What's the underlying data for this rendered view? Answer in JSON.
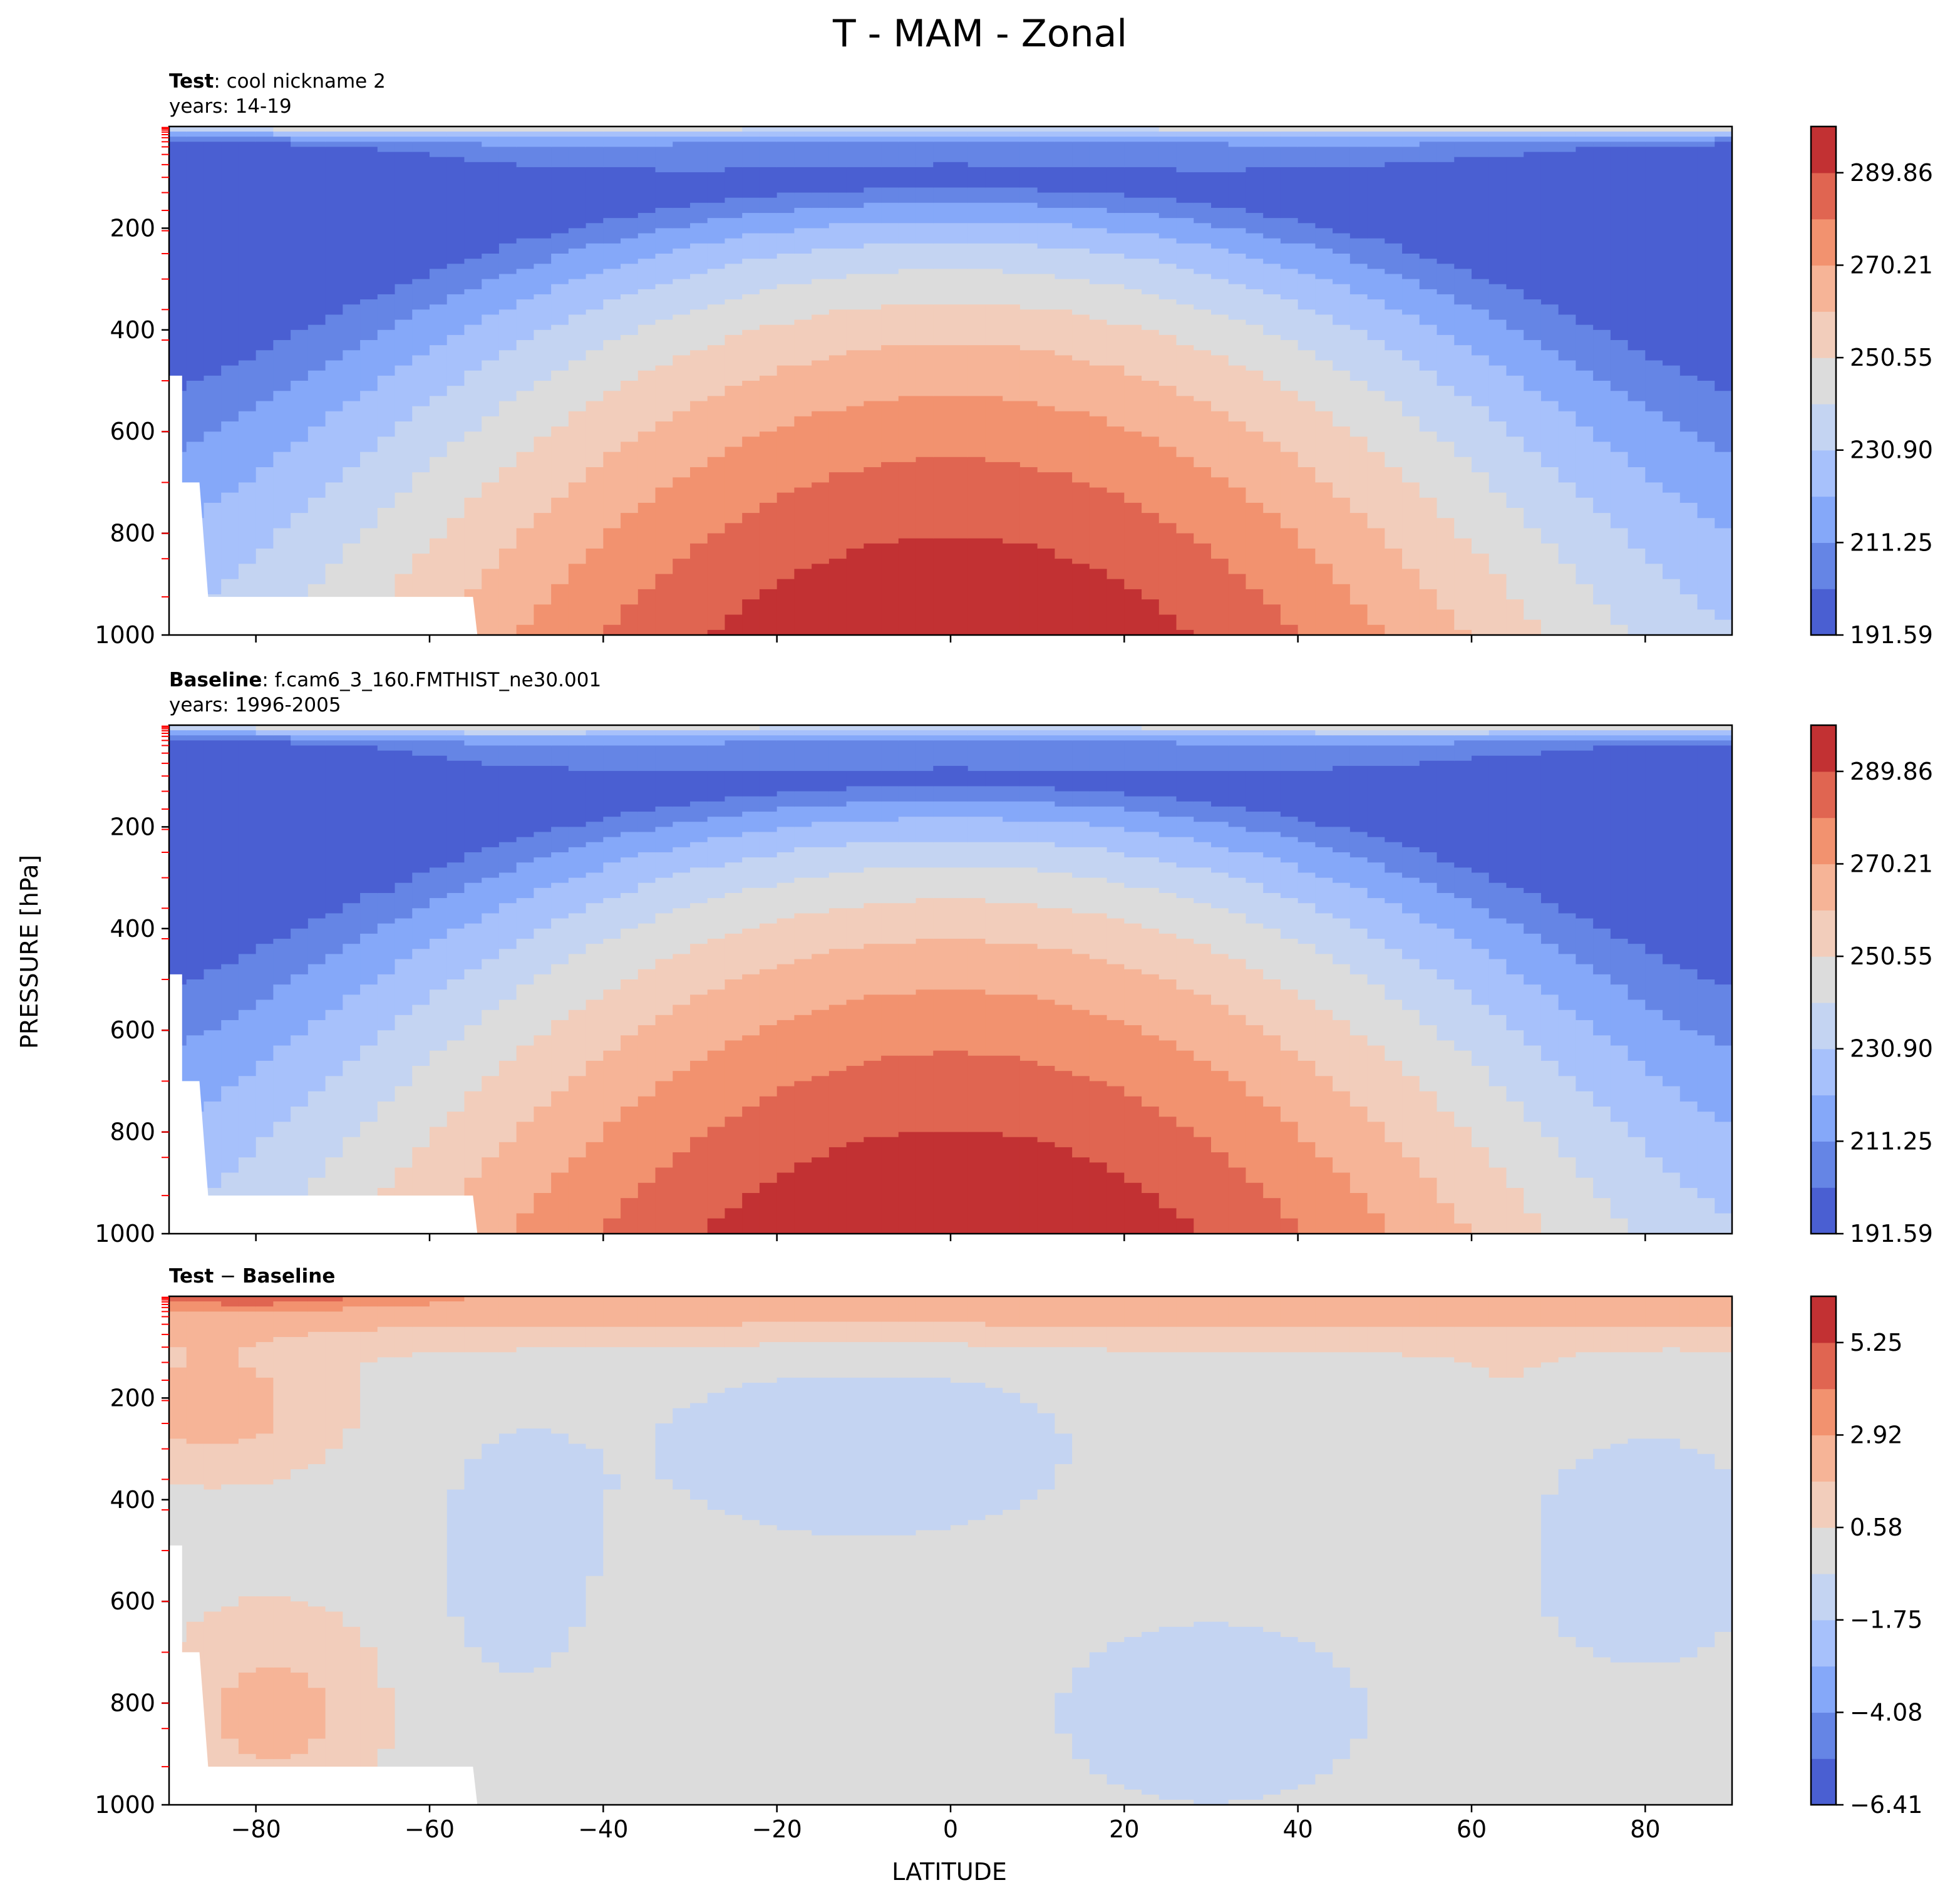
{
  "figure": {
    "title": "T - MAM - Zonal",
    "xlabel": "LATITUDE",
    "ylabel": "PRESSURE [hPa]"
  },
  "chart_data": [
    {
      "type": "contourf",
      "title_bold": "Test",
      "title_rest": ": cool nickname 2",
      "subtitle": "years: 14-19",
      "xlim": [
        -90,
        90
      ],
      "ylim": [
        1000,
        0
      ],
      "x_ticks": [
        "−80",
        "−60",
        "−40",
        "−20",
        "0",
        "20",
        "40",
        "60",
        "80"
      ],
      "y_ticks": [
        "200",
        "400",
        "600",
        "800",
        "1000"
      ],
      "colorbar_ticks": [
        "191.59",
        "211.25",
        "230.90",
        "250.55",
        "270.21",
        "289.86"
      ],
      "colorbar_range": [
        191.59,
        299.69
      ],
      "colorbar_levels": 11,
      "fields": {
        "tropopause_min": 195,
        "equator_surface": 298,
        "pole_surface": 250
      }
    },
    {
      "type": "contourf",
      "title_bold": "Baseline",
      "title_rest": ": f.cam6_3_160.FMTHIST_ne30.001",
      "subtitle": "years: 1996-2005",
      "xlim": [
        -90,
        90
      ],
      "ylim": [
        1000,
        0
      ],
      "x_ticks": [
        "−80",
        "−60",
        "−40",
        "−20",
        "0",
        "20",
        "40",
        "60",
        "80"
      ],
      "y_ticks": [
        "200",
        "400",
        "600",
        "800",
        "1000"
      ],
      "colorbar_ticks": [
        "191.59",
        "211.25",
        "230.90",
        "250.55",
        "270.21",
        "289.86"
      ],
      "colorbar_range": [
        191.59,
        299.69
      ],
      "colorbar_levels": 11,
      "fields": {
        "tropopause_min": 195,
        "equator_surface": 298,
        "pole_surface": 250
      }
    },
    {
      "type": "contourf",
      "title_bold": "Test",
      "title_rest": " − ",
      "title_bold2": "Baseline",
      "subtitle": "",
      "xlim": [
        -90,
        90
      ],
      "ylim": [
        1000,
        0
      ],
      "x_ticks": [
        "−80",
        "−60",
        "−40",
        "−20",
        "0",
        "20",
        "40",
        "60",
        "80"
      ],
      "y_ticks": [
        "200",
        "400",
        "600",
        "800",
        "1000"
      ],
      "colorbar_ticks": [
        "−6.41",
        "−4.08",
        "−1.75",
        "0.58",
        "2.92",
        "5.25"
      ],
      "colorbar_range": [
        -6.41,
        6.41
      ],
      "colorbar_levels": 11,
      "fields": {
        "diff_min": -1.75,
        "diff_max": 5.25
      }
    }
  ]
}
